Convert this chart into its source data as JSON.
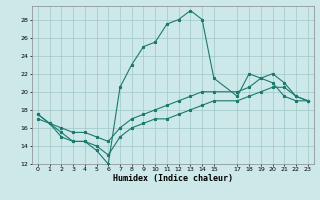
{
  "xlabel": "Humidex (Indice chaleur)",
  "bg_color": "#cde8e8",
  "grid_color": "#a0c8c8",
  "line_color": "#1a7a6e",
  "xlim": [
    -0.5,
    23.5
  ],
  "ylim": [
    12,
    29.5
  ],
  "xticks": [
    0,
    1,
    2,
    3,
    4,
    5,
    6,
    7,
    8,
    9,
    10,
    11,
    12,
    13,
    14,
    15,
    17,
    18,
    19,
    20,
    21,
    22,
    23
  ],
  "yticks": [
    12,
    14,
    16,
    18,
    20,
    22,
    24,
    26,
    28
  ],
  "line1_x": [
    0,
    1,
    2,
    3,
    4,
    5,
    6,
    7,
    8,
    9,
    10,
    11,
    12,
    13,
    14,
    15,
    17,
    18,
    19,
    20,
    21,
    22,
    23
  ],
  "line1_y": [
    17.5,
    16.5,
    15.0,
    14.5,
    14.5,
    13.5,
    12.0,
    20.5,
    23.0,
    25.0,
    25.5,
    27.5,
    28.0,
    29.0,
    28.0,
    21.5,
    19.5,
    22.0,
    21.5,
    21.0,
    19.5,
    19.0,
    19.0
  ],
  "line2_x": [
    0,
    1,
    2,
    3,
    4,
    5,
    6,
    7,
    8,
    9,
    10,
    11,
    12,
    13,
    14,
    15,
    17,
    18,
    19,
    20,
    21,
    22,
    23
  ],
  "line2_y": [
    17.5,
    16.5,
    16.0,
    15.5,
    15.5,
    15.0,
    14.5,
    16.0,
    17.0,
    17.5,
    18.0,
    18.5,
    19.0,
    19.5,
    20.0,
    20.0,
    20.0,
    20.5,
    21.5,
    22.0,
    21.0,
    19.5,
    19.0
  ],
  "line3_x": [
    0,
    1,
    2,
    3,
    4,
    5,
    6,
    7,
    8,
    9,
    10,
    11,
    12,
    13,
    14,
    15,
    17,
    18,
    19,
    20,
    21,
    22,
    23
  ],
  "line3_y": [
    17.0,
    16.5,
    15.5,
    14.5,
    14.5,
    14.0,
    13.0,
    15.0,
    16.0,
    16.5,
    17.0,
    17.0,
    17.5,
    18.0,
    18.5,
    19.0,
    19.0,
    19.5,
    20.0,
    20.5,
    20.5,
    19.5,
    19.0
  ]
}
